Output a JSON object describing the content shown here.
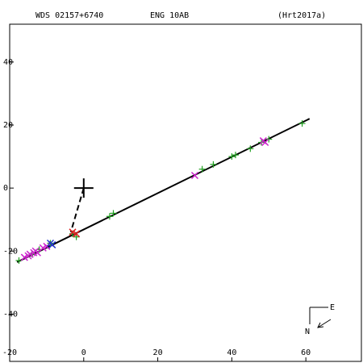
{
  "header": {
    "designation": "WDS 02157+6740",
    "discoverer": "ENG  10AB",
    "reference": "(Hrt2017a)"
  },
  "compass": {
    "east_label": "E",
    "north_label": "N"
  },
  "colors": {
    "axes": "#000000",
    "orbit_line": "#000000",
    "green_marks": "#21a021",
    "magenta_marks": "#cc22cc",
    "red_marks": "#dd2222",
    "blue_marks": "#2233cc"
  },
  "chart_data": {
    "type": "scatter",
    "title": "",
    "xlabel": "",
    "ylabel": "",
    "xlim": [
      -20,
      75
    ],
    "ylim": [
      -55,
      52
    ],
    "x_ticks": [
      -20,
      0,
      20,
      40,
      60
    ],
    "y_ticks": [
      -40,
      -20,
      0,
      20,
      40
    ],
    "grid": false,
    "primary_star": [
      0,
      0
    ],
    "fit_line": {
      "from": [
        -18,
        -23.5
      ],
      "to": [
        61,
        22
      ]
    },
    "connector": {
      "from": [
        0,
        0
      ],
      "to": [
        -3.5,
        -14
      ]
    },
    "series": [
      {
        "marker": "plus",
        "color": "#21a021",
        "points": [
          [
            -17.5,
            -23
          ],
          [
            -14,
            -21
          ],
          [
            -12,
            -19.5
          ],
          [
            -9,
            -17.5
          ],
          [
            -3,
            -14.5
          ],
          [
            -2,
            -15.5
          ],
          [
            7,
            -9
          ],
          [
            8,
            -8
          ],
          [
            32,
            6
          ],
          [
            35,
            7.5
          ],
          [
            40,
            10
          ],
          [
            41,
            10.5
          ],
          [
            45,
            12.5
          ],
          [
            48,
            14.5
          ],
          [
            50,
            15.5
          ],
          [
            59,
            20.5
          ]
        ]
      },
      {
        "marker": "cross",
        "color": "#cc22cc",
        "points": [
          [
            -16,
            -22
          ],
          [
            -15,
            -21.5
          ],
          [
            -14.5,
            -21
          ],
          [
            -13.5,
            -20.5
          ],
          [
            -13,
            -20
          ],
          [
            -12.5,
            -20.5
          ],
          [
            -11,
            -19
          ],
          [
            -10,
            -18.5
          ],
          [
            30,
            4
          ],
          [
            48.5,
            15
          ],
          [
            49,
            14.5
          ]
        ]
      },
      {
        "marker": "cross",
        "color": "#dd2222",
        "points": [
          [
            -3,
            -14
          ],
          [
            -2,
            -14.5
          ]
        ]
      },
      {
        "marker": "cross",
        "color": "#2233cc",
        "points": [
          [
            -8.5,
            -18
          ],
          [
            -9,
            -17.5
          ]
        ]
      }
    ]
  }
}
